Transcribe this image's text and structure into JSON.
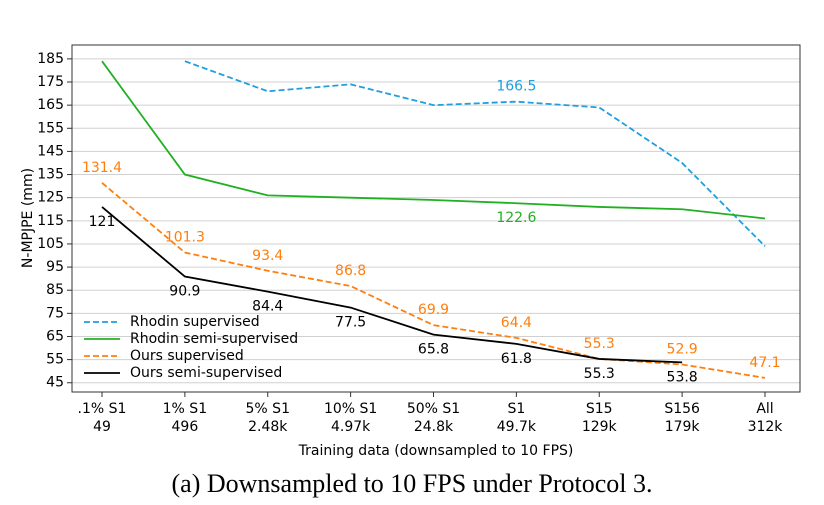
{
  "chart_data": {
    "type": "line",
    "caption": "(a) Downsampled to 10 FPS under Protocol 3.",
    "xlabel": "Training data (downsampled to 10 FPS)",
    "ylabel": "N-MPJPE (mm)",
    "categories": [
      ".1% S1",
      "1% S1",
      "5% S1",
      "10% S1",
      "50% S1",
      "S1",
      "S15",
      "S156",
      "All"
    ],
    "category_counts": [
      "49",
      "496",
      "2.48k",
      "4.97k",
      "24.8k",
      "49.7k",
      "129k",
      "179k",
      "312k"
    ],
    "ylim": [
      41,
      191
    ],
    "yticks": [
      45,
      55,
      65,
      75,
      85,
      95,
      105,
      115,
      125,
      135,
      145,
      155,
      165,
      175,
      185
    ],
    "grid": true,
    "legend": "lower left",
    "series": [
      {
        "name": "Rhodin supervised",
        "color": "#1f9ee0",
        "dashed": true,
        "values": [
          null,
          184,
          171,
          174,
          165,
          166.5,
          164,
          140,
          104
        ],
        "value_labels": [
          null,
          null,
          null,
          null,
          null,
          "166.5",
          null,
          null,
          null
        ]
      },
      {
        "name": "Rhodin semi-supervised",
        "color": "#22b022",
        "dashed": false,
        "values": [
          184,
          135,
          126,
          125,
          124,
          122.6,
          121,
          120,
          116
        ],
        "value_labels": [
          null,
          null,
          null,
          null,
          null,
          "122.6",
          null,
          null,
          null
        ]
      },
      {
        "name": "Ours supervised",
        "color": "#ff7f0e",
        "dashed": true,
        "values": [
          131.4,
          101.3,
          93.4,
          86.8,
          69.9,
          64.4,
          55.3,
          52.9,
          47.1
        ],
        "value_labels": [
          "131.4",
          "101.3",
          "93.4",
          "86.8",
          "69.9",
          "64.4",
          "55.3",
          "52.9",
          "47.1"
        ]
      },
      {
        "name": "Ours semi-supervised",
        "color": "#000000",
        "dashed": false,
        "values": [
          121,
          90.9,
          84.4,
          77.5,
          65.8,
          61.8,
          55.3,
          53.8,
          null
        ],
        "value_labels": [
          "121",
          "90.9",
          "84.4",
          "77.5",
          "65.8",
          "61.8",
          "55.3",
          "53.8",
          null
        ]
      }
    ]
  }
}
